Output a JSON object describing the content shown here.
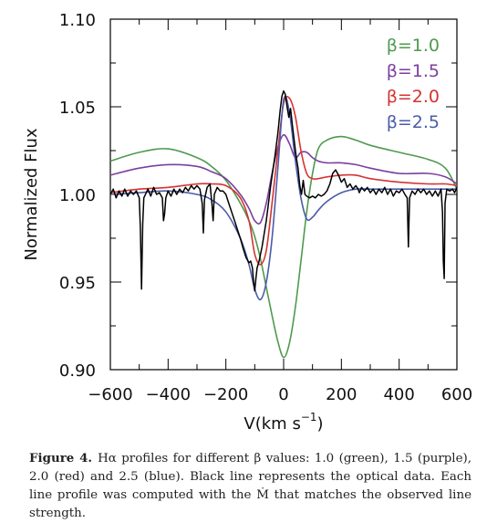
{
  "chart_data": {
    "type": "line",
    "title": "",
    "xlabel": "V(km s",
    "xlabel_sup": "−1",
    "xlabel_close": ")",
    "ylabel": "Normalized Flux",
    "xlim": [
      -600,
      600
    ],
    "ylim": [
      0.9,
      1.1
    ],
    "x_ticks": [
      -600,
      -400,
      -200,
      0,
      200,
      400,
      600
    ],
    "x_tick_labels": [
      "−600",
      "−400",
      "−200",
      "0",
      "200",
      "400",
      "600"
    ],
    "y_ticks": [
      0.9,
      0.95,
      1.0,
      1.05,
      1.1
    ],
    "y_tick_labels": [
      "0.90",
      "0.95",
      "1.00",
      "1.05",
      "1.10"
    ],
    "grid": false,
    "legend_position": "top-right",
    "x": [
      -600,
      -500,
      -400,
      -300,
      -250,
      -200,
      -150,
      -120,
      -100,
      -80,
      -60,
      -40,
      -20,
      0,
      20,
      40,
      60,
      80,
      100,
      120,
      150,
      200,
      250,
      300,
      400,
      500,
      560,
      600
    ],
    "series": [
      {
        "name": "β=1.0",
        "color": "#4e9a4e",
        "values": [
          1.019,
          1.024,
          1.026,
          1.021,
          1.016,
          1.008,
          0.995,
          0.985,
          0.976,
          0.963,
          0.947,
          0.931,
          0.916,
          0.907,
          0.915,
          0.935,
          0.962,
          0.99,
          1.012,
          1.026,
          1.031,
          1.033,
          1.031,
          1.028,
          1.024,
          1.02,
          1.015,
          1.003
        ]
      },
      {
        "name": "β=1.5",
        "color": "#7b3f9e",
        "values": [
          1.011,
          1.015,
          1.017,
          1.016,
          1.013,
          1.009,
          1.0,
          0.992,
          0.985,
          0.984,
          0.995,
          1.012,
          1.027,
          1.034,
          1.029,
          1.021,
          1.024,
          1.024,
          1.021,
          1.019,
          1.018,
          1.018,
          1.017,
          1.015,
          1.012,
          1.012,
          1.01,
          1.006
        ]
      },
      {
        "name": "β=2.0",
        "color": "#d43333",
        "values": [
          1.001,
          1.003,
          1.004,
          1.006,
          1.006,
          1.005,
          0.998,
          0.985,
          0.966,
          0.96,
          0.968,
          0.995,
          1.025,
          1.052,
          1.055,
          1.045,
          1.025,
          1.012,
          1.009,
          1.009,
          1.01,
          1.011,
          1.011,
          1.009,
          1.007,
          1.006,
          1.006,
          1.005
        ]
      },
      {
        "name": "β=2.5",
        "color": "#4a5ca8",
        "values": [
          1.0,
          1.001,
          1.002,
          1.0,
          0.997,
          0.99,
          0.975,
          0.96,
          0.946,
          0.94,
          0.95,
          0.975,
          1.015,
          1.054,
          1.047,
          1.02,
          0.998,
          0.986,
          0.987,
          0.991,
          0.996,
          1.001,
          1.003,
          1.003,
          1.003,
          1.003,
          1.003,
          1.003
        ]
      }
    ],
    "observed": {
      "color": "#000000",
      "points": [
        [
          -600,
          1.0
        ],
        [
          -590,
          1.003
        ],
        [
          -580,
          0.998
        ],
        [
          -570,
          1.002
        ],
        [
          -560,
          0.999
        ],
        [
          -550,
          1.003
        ],
        [
          -540,
          0.999
        ],
        [
          -530,
          1.002
        ],
        [
          -520,
          1.0
        ],
        [
          -510,
          1.002
        ],
        [
          -500,
          0.998
        ],
        [
          -496,
          0.981
        ],
        [
          -492,
          0.946
        ],
        [
          -488,
          0.983
        ],
        [
          -484,
          0.998
        ],
        [
          -470,
          1.003
        ],
        [
          -460,
          0.999
        ],
        [
          -450,
          1.004
        ],
        [
          -440,
          1.0
        ],
        [
          -430,
          1.001
        ],
        [
          -420,
          0.998
        ],
        [
          -416,
          0.985
        ],
        [
          -412,
          0.989
        ],
        [
          -408,
          0.998
        ],
        [
          -400,
          1.002
        ],
        [
          -390,
          0.999
        ],
        [
          -380,
          1.003
        ],
        [
          -370,
          1.0
        ],
        [
          -360,
          1.003
        ],
        [
          -350,
          1.001
        ],
        [
          -340,
          1.004
        ],
        [
          -330,
          1.002
        ],
        [
          -320,
          1.005
        ],
        [
          -310,
          1.003
        ],
        [
          -300,
          1.005
        ],
        [
          -290,
          1.003
        ],
        [
          -282,
          0.995
        ],
        [
          -278,
          0.978
        ],
        [
          -274,
          0.997
        ],
        [
          -265,
          1.004
        ],
        [
          -255,
          1.006
        ],
        [
          -248,
          0.994
        ],
        [
          -244,
          0.985
        ],
        [
          -240,
          1.0
        ],
        [
          -230,
          1.004
        ],
        [
          -220,
          1.002
        ],
        [
          -210,
          1.002
        ],
        [
          -200,
          1.0
        ],
        [
          -190,
          0.995
        ],
        [
          -180,
          0.99
        ],
        [
          -170,
          0.985
        ],
        [
          -160,
          0.98
        ],
        [
          -150,
          0.975
        ],
        [
          -140,
          0.969
        ],
        [
          -130,
          0.964
        ],
        [
          -120,
          0.961
        ],
        [
          -114,
          0.962
        ],
        [
          -108,
          0.958
        ],
        [
          -104,
          0.95
        ],
        [
          -100,
          0.945
        ],
        [
          -96,
          0.952
        ],
        [
          -92,
          0.958
        ],
        [
          -85,
          0.962
        ],
        [
          -75,
          0.97
        ],
        [
          -60,
          0.985
        ],
        [
          -45,
          1.005
        ],
        [
          -30,
          1.022
        ],
        [
          -20,
          1.035
        ],
        [
          -12,
          1.048
        ],
        [
          -6,
          1.056
        ],
        [
          0,
          1.059
        ],
        [
          6,
          1.057
        ],
        [
          12,
          1.05
        ],
        [
          18,
          1.044
        ],
        [
          24,
          1.049
        ],
        [
          30,
          1.04
        ],
        [
          38,
          1.029
        ],
        [
          44,
          1.021
        ],
        [
          50,
          1.015
        ],
        [
          56,
          1.005
        ],
        [
          62,
          1.0
        ],
        [
          68,
          1.008
        ],
        [
          74,
          1.0
        ],
        [
          80,
          0.999
        ],
        [
          90,
          0.998
        ],
        [
          100,
          0.999
        ],
        [
          110,
          0.998
        ],
        [
          120,
          1.0
        ],
        [
          130,
          0.999
        ],
        [
          140,
          1.0
        ],
        [
          150,
          1.002
        ],
        [
          160,
          1.006
        ],
        [
          170,
          1.012
        ],
        [
          180,
          1.014
        ],
        [
          190,
          1.011
        ],
        [
          200,
          1.007
        ],
        [
          210,
          1.009
        ],
        [
          220,
          1.004
        ],
        [
          230,
          1.006
        ],
        [
          240,
          1.003
        ],
        [
          250,
          1.005
        ],
        [
          258,
          1.003
        ],
        [
          262,
          1.001
        ],
        [
          270,
          1.004
        ],
        [
          280,
          1.002
        ],
        [
          290,
          1.004
        ],
        [
          300,
          1.001
        ],
        [
          310,
          1.003
        ],
        [
          320,
          1.0
        ],
        [
          330,
          1.003
        ],
        [
          340,
          1.001
        ],
        [
          350,
          1.004
        ],
        [
          360,
          1.0
        ],
        [
          370,
          1.003
        ],
        [
          380,
          0.999
        ],
        [
          390,
          1.002
        ],
        [
          400,
          1.001
        ],
        [
          410,
          1.003
        ],
        [
          420,
          1.0
        ],
        [
          428,
          0.998
        ],
        [
          432,
          0.97
        ],
        [
          436,
          0.998
        ],
        [
          445,
          1.002
        ],
        [
          455,
          1.0
        ],
        [
          465,
          1.003
        ],
        [
          475,
          1.001
        ],
        [
          485,
          1.003
        ],
        [
          495,
          1.0
        ],
        [
          505,
          1.002
        ],
        [
          515,
          0.999
        ],
        [
          525,
          1.002
        ],
        [
          535,
          0.999
        ],
        [
          545,
          1.003
        ],
        [
          550,
          0.99
        ],
        [
          553,
          0.962
        ],
        [
          556,
          0.952
        ],
        [
          559,
          0.995
        ],
        [
          565,
          1.003
        ],
        [
          575,
          1.002
        ],
        [
          585,
          1.003
        ],
        [
          592,
          1.001
        ],
        [
          600,
          1.004
        ]
      ]
    }
  },
  "caption": {
    "label": "Figure 4.",
    "text": "Hα profiles for different β values: 1.0 (green), 1.5 (purple), 2.0 (red) and 2.5 (blue). Black line represents the optical data. Each line profile was computed with the Ṁ that matches the observed line strength."
  }
}
